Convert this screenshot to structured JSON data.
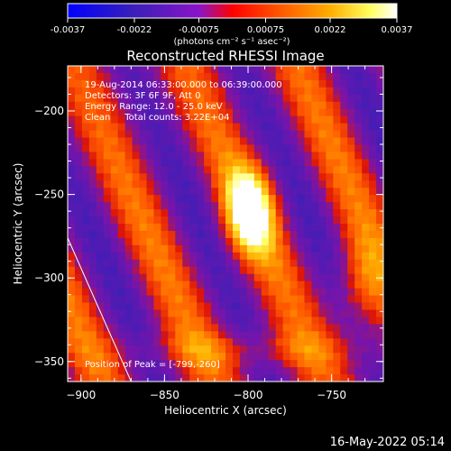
{
  "colorbar": {
    "tick_labels": [
      "-0.0037",
      "-0.0022",
      "-0.00075",
      "0.00075",
      "0.0022",
      "0.0037"
    ],
    "units_label": "(photons cm⁻² s⁻¹ asec⁻²)",
    "range": [
      -0.0037,
      0.0037
    ]
  },
  "chart_data": {
    "type": "heatmap",
    "title": "Reconstructed RHESSI Image",
    "xlabel": "Heliocentric X (arcsec)",
    "ylabel": "Heliocentric Y (arcsec)",
    "xlim": [
      -908,
      -719
    ],
    "ylim": [
      -362,
      -173
    ],
    "x_ticks": [
      -900,
      -850,
      -800,
      -750
    ],
    "y_ticks": [
      -200,
      -250,
      -300,
      -350
    ],
    "annotations": [
      "19-Aug-2014 06:33:00.000 to 06:39:00.000",
      "Detectors: 3F 6F 9F, Att 0",
      "Energy Range: 12.0 - 25.0 keV",
      "Clean     Total counts: 3.22E+04"
    ],
    "peak_label": "Position of Peak = [-799,-260]",
    "peak": [
      -799,
      -260
    ],
    "limb_line": [
      [
        -908,
        -276
      ],
      [
        -870,
        -362
      ]
    ],
    "colormap": "red-temperature diverging (blue negative, white positive)"
  },
  "footer": {
    "timestamp": "16-May-2022 05:14"
  }
}
